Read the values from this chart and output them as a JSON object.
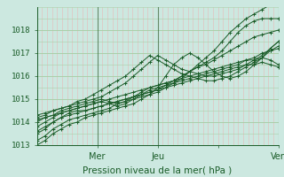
{
  "title": "Pression niveau de la mer( hPa )",
  "bg_color": "#cce8e0",
  "plot_bg_color": "#cce8e0",
  "line_color": "#1a5c28",
  "grid_color_h": "#aacfaa",
  "grid_color_v": "#e8b8b8",
  "ylim": [
    1013.0,
    1019.0
  ],
  "yticks": [
    1013,
    1014,
    1015,
    1016,
    1017,
    1018
  ],
  "xlim": [
    0,
    96
  ],
  "xtick_positions": [
    24,
    48,
    72,
    96
  ],
  "xtick_labels": [
    "Mer",
    "Jeu",
    "",
    "Ven"
  ],
  "day_lines": [
    24,
    48,
    96
  ],
  "series": [
    [
      1013.2,
      1013.4,
      1013.7,
      1013.9,
      1014.1,
      1014.2,
      1014.3,
      1014.4,
      1014.5,
      1014.6,
      1014.8,
      1014.9,
      1015.0,
      1015.1,
      1015.2,
      1015.3,
      1015.5,
      1015.7,
      1015.9,
      1016.2,
      1016.5,
      1016.8,
      1017.1,
      1017.5,
      1017.9,
      1018.2,
      1018.5,
      1018.7,
      1018.9,
      1019.1,
      1019.3
    ],
    [
      1013.5,
      1013.7,
      1014.0,
      1014.2,
      1014.4,
      1014.5,
      1014.5,
      1014.6,
      1014.7,
      1014.8,
      1014.9,
      1015.0,
      1015.1,
      1015.2,
      1015.3,
      1015.4,
      1015.6,
      1015.8,
      1016.0,
      1016.2,
      1016.4,
      1016.6,
      1016.8,
      1017.1,
      1017.5,
      1017.9,
      1018.2,
      1018.4,
      1018.5,
      1018.5,
      1018.5
    ],
    [
      1013.8,
      1014.0,
      1014.2,
      1014.4,
      1014.5,
      1014.6,
      1014.7,
      1014.8,
      1014.9,
      1015.0,
      1015.1,
      1015.2,
      1015.3,
      1015.4,
      1015.5,
      1015.6,
      1015.7,
      1015.8,
      1016.0,
      1016.2,
      1016.4,
      1016.5,
      1016.7,
      1016.9,
      1017.1,
      1017.3,
      1017.5,
      1017.7,
      1017.8,
      1017.9,
      1018.0
    ],
    [
      1014.0,
      1014.2,
      1014.3,
      1014.4,
      1014.5,
      1014.6,
      1014.7,
      1014.8,
      1014.9,
      1014.8,
      1014.7,
      1014.8,
      1015.0,
      1015.2,
      1015.4,
      1015.5,
      1015.6,
      1015.7,
      1015.8,
      1015.9,
      1016.0,
      1016.1,
      1016.2,
      1016.3,
      1016.4,
      1016.5,
      1016.7,
      1016.8,
      1017.0,
      1017.1,
      1017.2
    ],
    [
      1014.1,
      1014.2,
      1014.3,
      1014.5,
      1014.6,
      1014.7,
      1014.8,
      1014.9,
      1015.0,
      1014.9,
      1014.8,
      1014.9,
      1015.1,
      1015.3,
      1015.5,
      1015.6,
      1015.7,
      1015.8,
      1015.9,
      1016.0,
      1016.1,
      1016.2,
      1016.3,
      1016.4,
      1016.5,
      1016.6,
      1016.7,
      1016.7,
      1016.8,
      1016.7,
      1016.5
    ],
    [
      1013.6,
      1013.8,
      1014.0,
      1014.2,
      1014.3,
      1014.4,
      1014.5,
      1014.6,
      1014.7,
      1014.8,
      1014.9,
      1015.0,
      1015.1,
      1015.2,
      1015.3,
      1015.4,
      1015.5,
      1015.6,
      1015.7,
      1015.8,
      1015.9,
      1016.0,
      1016.1,
      1016.2,
      1016.3,
      1016.4,
      1016.5,
      1016.5,
      1016.6,
      1016.5,
      1016.4
    ],
    [
      1013.0,
      1013.2,
      1013.5,
      1013.7,
      1013.9,
      1014.0,
      1014.2,
      1014.3,
      1014.4,
      1014.5,
      1014.6,
      1014.7,
      1014.8,
      1015.0,
      1015.2,
      1015.5,
      1016.0,
      1016.5,
      1016.8,
      1017.0,
      1016.8,
      1016.5,
      1016.2,
      1016.0,
      1015.9,
      1016.0,
      1016.2,
      1016.5,
      1016.8,
      1017.2,
      1017.5
    ],
    [
      1014.2,
      1014.3,
      1014.5,
      1014.6,
      1014.7,
      1014.8,
      1014.9,
      1015.0,
      1015.1,
      1015.3,
      1015.5,
      1015.7,
      1016.0,
      1016.3,
      1016.6,
      1016.9,
      1016.7,
      1016.5,
      1016.3,
      1016.2,
      1016.1,
      1016.0,
      1016.0,
      1016.1,
      1016.2,
      1016.3,
      1016.5,
      1016.7,
      1016.9,
      1017.2,
      1017.5
    ],
    [
      1014.3,
      1014.4,
      1014.5,
      1014.6,
      1014.7,
      1014.9,
      1015.0,
      1015.2,
      1015.4,
      1015.6,
      1015.8,
      1016.0,
      1016.3,
      1016.6,
      1016.9,
      1016.7,
      1016.5,
      1016.3,
      1016.1,
      1016.0,
      1015.9,
      1015.8,
      1015.8,
      1015.9,
      1016.0,
      1016.2,
      1016.4,
      1016.6,
      1016.8,
      1017.1,
      1017.3
    ]
  ]
}
